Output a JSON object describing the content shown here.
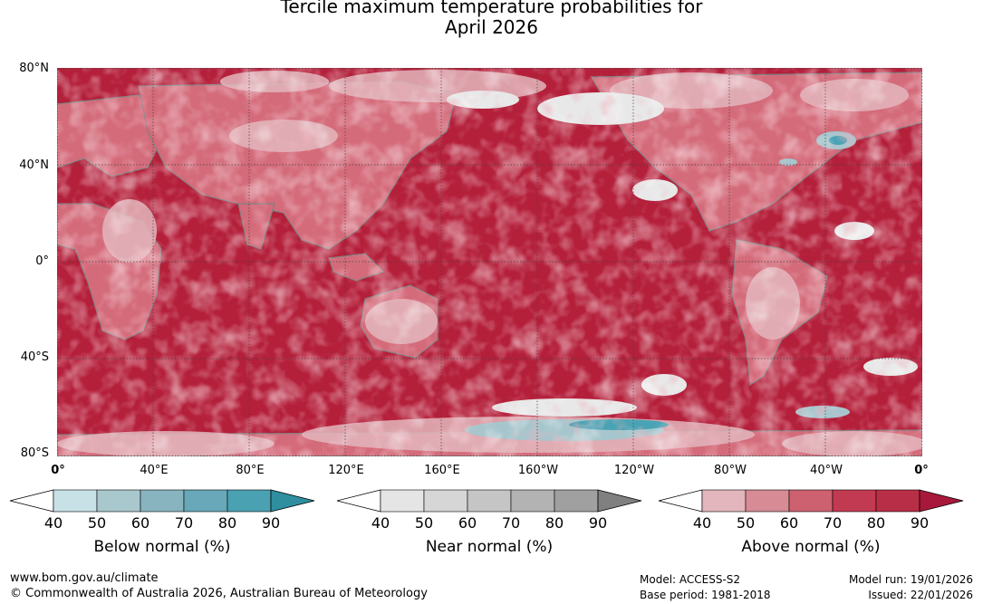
{
  "title_line1": "Tercile maximum temperature probabilities for",
  "title_line2": "April 2026",
  "axes": {
    "lat_labels": [
      "80°N",
      "40°N",
      "0°",
      "40°S",
      "80°S"
    ],
    "lon_labels": [
      "0°",
      "40°E",
      "80°E",
      "120°E",
      "160°E",
      "160°W",
      "120°W",
      "80°W",
      "40°W",
      "0°"
    ]
  },
  "map": {
    "projection": "equirectangular",
    "lon_range": [
      0,
      360
    ],
    "lat_range": [
      -80,
      80
    ],
    "gridlines": "dotted every 40°",
    "dominant_category": "Above normal",
    "colors": {
      "above_90": "#b41f3a",
      "above_80": "#c23a51",
      "above_70": "#cd6170",
      "above_60": "#d68b95",
      "above_50": "#e2b6bc",
      "near_50": "#e8e8e8",
      "near_60": "#d7d7d7",
      "below_60": "#a6c6cd",
      "below_80": "#4aa3b4",
      "land": "#d46b7a",
      "coast": "#808080"
    }
  },
  "colorbars": [
    {
      "name": "Below normal (%)",
      "ticks": [
        "40",
        "50",
        "60",
        "70",
        "80",
        "90"
      ],
      "colors": [
        "#ffffff",
        "#c8e1e7",
        "#a9c8cd",
        "#88b4c0",
        "#68a8b8",
        "#4aa1b2",
        "#2f8f9f"
      ]
    },
    {
      "name": "Near normal (%)",
      "ticks": [
        "40",
        "50",
        "60",
        "70",
        "80",
        "90"
      ],
      "colors": [
        "#ffffff",
        "#e5e5e5",
        "#d6d6d6",
        "#c5c5c5",
        "#b3b3b3",
        "#a0a0a0",
        "#808080"
      ]
    },
    {
      "name": "Above normal (%)",
      "ticks": [
        "40",
        "50",
        "60",
        "70",
        "80",
        "90"
      ],
      "colors": [
        "#ffffff",
        "#e2b6bc",
        "#d68b95",
        "#cd6170",
        "#c23a51",
        "#b82e46",
        "#a8183a"
      ]
    }
  ],
  "footer": {
    "url": "www.bom.gov.au/climate",
    "copyright": "© Commonwealth of Australia 2026, Australian Bureau of Meteorology",
    "model": "Model: ACCESS-S2",
    "base_period": "Base period: 1981-2018",
    "model_run": "Model run: 19/01/2026",
    "issued": "Issued: 22/01/2026"
  }
}
